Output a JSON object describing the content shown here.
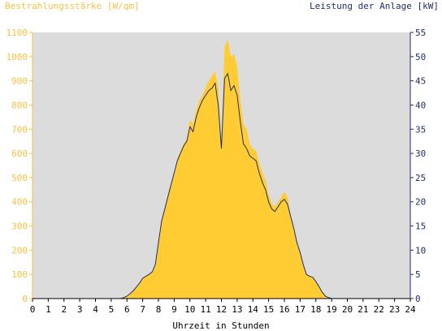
{
  "chart_data": {
    "type": "area",
    "title_left": "Bestrahlungsstärke [W/qm]",
    "title_right": "Leistung der Anlage [kW]",
    "xlabel": "Uhrzeit in Stunden",
    "xlim": [
      0,
      24
    ],
    "ylim_left": [
      0,
      1100
    ],
    "ylim_right": [
      0,
      55
    ],
    "x_ticks": [
      "0",
      "1",
      "2",
      "3",
      "4",
      "5",
      "6",
      "7",
      "8",
      "9",
      "10",
      "11",
      "12",
      "13",
      "14",
      "15",
      "16",
      "17",
      "18",
      "19",
      "20",
      "21",
      "22",
      "23",
      "24"
    ],
    "y_left_ticks": [
      "0",
      "100",
      "200",
      "300",
      "400",
      "500",
      "600",
      "700",
      "800",
      "900",
      "1000",
      "1100"
    ],
    "y_right_ticks": [
      "0",
      "5",
      "10",
      "15",
      "20",
      "25",
      "30",
      "35",
      "40",
      "45",
      "50",
      "55"
    ],
    "colors": {
      "plot_bg": "#dcdcdc",
      "irradiance_fill": "#ffcc33",
      "power_line": "#1f2f6e",
      "left_axis": "#f5c242",
      "right_axis": "#1f2f6e"
    },
    "series": [
      {
        "name": "Bestrahlungsstärke [W/qm]",
        "axis": "left",
        "x": [
          0,
          5.6,
          5.8,
          6.0,
          6.2,
          6.4,
          6.6,
          6.8,
          7.0,
          7.2,
          7.4,
          7.6,
          7.8,
          8.0,
          8.2,
          8.4,
          8.6,
          8.8,
          9.0,
          9.2,
          9.4,
          9.6,
          9.8,
          10.0,
          10.2,
          10.4,
          10.6,
          10.8,
          11.0,
          11.2,
          11.4,
          11.6,
          11.8,
          12.0,
          12.2,
          12.4,
          12.6,
          12.8,
          13.0,
          13.2,
          13.4,
          13.6,
          13.8,
          14.0,
          14.2,
          14.4,
          14.6,
          14.8,
          15.0,
          15.2,
          15.4,
          15.6,
          15.8,
          16.0,
          16.2,
          16.4,
          16.6,
          16.8,
          17.0,
          17.2,
          17.4,
          17.6,
          17.8,
          18.0,
          18.2,
          18.4,
          18.6,
          18.8,
          19.0,
          24
        ],
        "y": [
          0,
          0,
          5,
          12,
          22,
          35,
          50,
          65,
          85,
          95,
          100,
          110,
          140,
          240,
          330,
          380,
          430,
          480,
          520,
          580,
          610,
          640,
          660,
          740,
          720,
          780,
          820,
          840,
          870,
          900,
          920,
          940,
          870,
          640,
          1040,
          1070,
          1000,
          1010,
          960,
          820,
          720,
          700,
          640,
          620,
          610,
          560,
          520,
          490,
          430,
          390,
          380,
          400,
          420,
          440,
          420,
          340,
          290,
          230,
          190,
          140,
          100,
          95,
          90,
          70,
          50,
          25,
          10,
          3,
          0,
          0
        ]
      },
      {
        "name": "Leistung der Anlage [kW]",
        "axis": "right",
        "x": [
          0,
          5.6,
          5.8,
          6.0,
          6.2,
          6.4,
          6.6,
          6.8,
          7.0,
          7.2,
          7.4,
          7.6,
          7.8,
          8.0,
          8.2,
          8.4,
          8.6,
          8.8,
          9.0,
          9.2,
          9.4,
          9.6,
          9.8,
          10.0,
          10.2,
          10.4,
          10.6,
          10.8,
          11.0,
          11.2,
          11.4,
          11.6,
          11.8,
          12.0,
          12.2,
          12.4,
          12.6,
          12.8,
          13.0,
          13.2,
          13.4,
          13.6,
          13.8,
          14.0,
          14.2,
          14.4,
          14.6,
          14.8,
          15.0,
          15.2,
          15.4,
          15.6,
          15.8,
          16.0,
          16.2,
          16.4,
          16.6,
          16.8,
          17.0,
          17.2,
          17.4,
          17.6,
          17.8,
          18.0,
          18.2,
          18.4,
          18.6,
          18.8,
          19.0,
          24
        ],
        "y": [
          0,
          0,
          0.2,
          0.5,
          1.0,
          1.6,
          2.4,
          3.2,
          4.2,
          4.6,
          5.0,
          5.5,
          7.0,
          11.5,
          16.0,
          18.5,
          21.0,
          23.5,
          26.0,
          28.5,
          30.0,
          31.5,
          32.5,
          35.5,
          34.5,
          37.5,
          39.5,
          41.0,
          42.0,
          43.0,
          43.5,
          44.5,
          40.0,
          31.0,
          45.5,
          46.5,
          43.0,
          44.0,
          42.0,
          36.5,
          32.0,
          31.0,
          29.5,
          29.0,
          28.5,
          26.0,
          24.0,
          22.5,
          20.0,
          18.5,
          18.0,
          19.0,
          20.0,
          20.5,
          19.5,
          17.0,
          14.5,
          11.5,
          9.5,
          7.0,
          5.0,
          4.6,
          4.4,
          3.5,
          2.5,
          1.3,
          0.5,
          0.2,
          0,
          0
        ]
      }
    ]
  }
}
